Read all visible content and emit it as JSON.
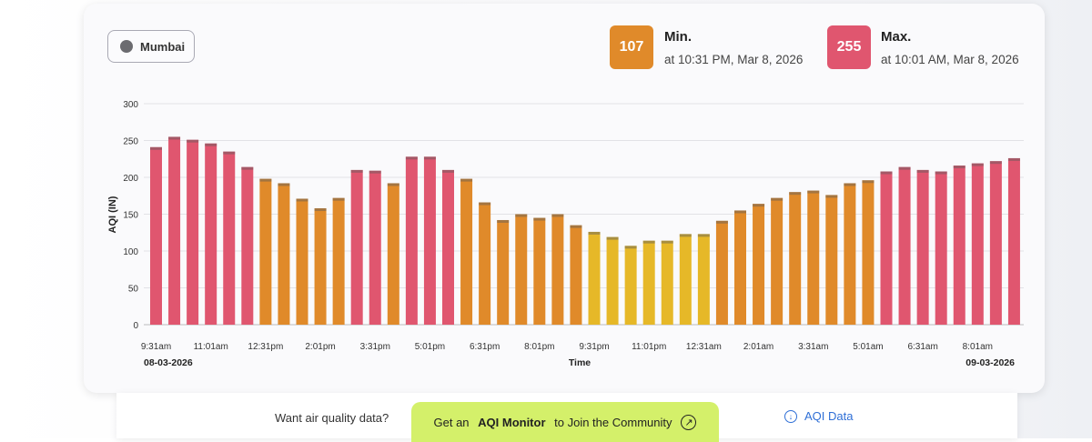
{
  "city": {
    "name": "Mumbai"
  },
  "min_stat": {
    "value": "107",
    "title": "Min.",
    "time": "at 10:31 PM, Mar 8, 2026",
    "color": "#e08a2a"
  },
  "max_stat": {
    "value": "255",
    "title": "Max.",
    "time": "at 10:01 AM, Mar 8, 2026",
    "color": "#e0566f"
  },
  "chart_data": {
    "type": "bar",
    "ylabel": "AQI (IN)",
    "xlabel": "Time",
    "ylim": [
      0,
      300
    ],
    "yticks": [
      0,
      50,
      100,
      150,
      200,
      250,
      300
    ],
    "grid": true,
    "start_date_label": "08-03-2026",
    "end_date_label": "09-03-2026",
    "tick_labels": [
      "9:31am",
      "11:01am",
      "12:31pm",
      "2:01pm",
      "3:31pm",
      "5:01pm",
      "6:31pm",
      "8:01pm",
      "9:31pm",
      "11:01pm",
      "12:31am",
      "2:01am",
      "3:31am",
      "5:01am",
      "6:31am",
      "8:01am"
    ],
    "tick_every": 3,
    "values": [
      241,
      255,
      251,
      246,
      235,
      214,
      198,
      192,
      171,
      158,
      172,
      210,
      209,
      192,
      228,
      228,
      210,
      198,
      166,
      142,
      150,
      145,
      150,
      135,
      126,
      119,
      107,
      114,
      114,
      123,
      123,
      141,
      155,
      164,
      172,
      180,
      182,
      176,
      192,
      196,
      208,
      214,
      210,
      208,
      216,
      219,
      222,
      226
    ],
    "colors": {
      "high": "#e0566f",
      "mid": "#e08a2a",
      "low": "#e6b828"
    }
  },
  "footer": {
    "prompt": "Want air quality data?",
    "cta_prefix": "Get an ",
    "cta_bold": "AQI Monitor",
    "cta_suffix": " to Join the Community",
    "data_link": "AQI Data"
  }
}
